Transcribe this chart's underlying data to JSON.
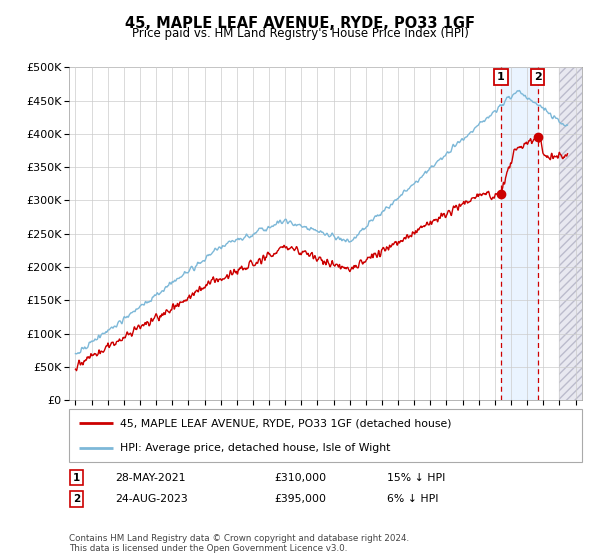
{
  "title": "45, MAPLE LEAF AVENUE, RYDE, PO33 1GF",
  "subtitle": "Price paid vs. HM Land Registry's House Price Index (HPI)",
  "legend_line1": "45, MAPLE LEAF AVENUE, RYDE, PO33 1GF (detached house)",
  "legend_line2": "HPI: Average price, detached house, Isle of Wight",
  "annotation1_date": "28-MAY-2021",
  "annotation1_price": "£310,000",
  "annotation1_hpi": "15% ↓ HPI",
  "annotation2_date": "24-AUG-2023",
  "annotation2_price": "£395,000",
  "annotation2_hpi": "6% ↓ HPI",
  "footnote": "Contains HM Land Registry data © Crown copyright and database right 2024.\nThis data is licensed under the Open Government Licence v3.0.",
  "hpi_color": "#7db8d8",
  "price_color": "#cc0000",
  "dot_color": "#cc0000",
  "vline_color": "#cc0000",
  "ylim_min": 0,
  "ylim_max": 500000,
  "transaction1_year": 2021.38,
  "transaction1_value": 310000,
  "transaction2_year": 2023.65,
  "transaction2_value": 395000
}
